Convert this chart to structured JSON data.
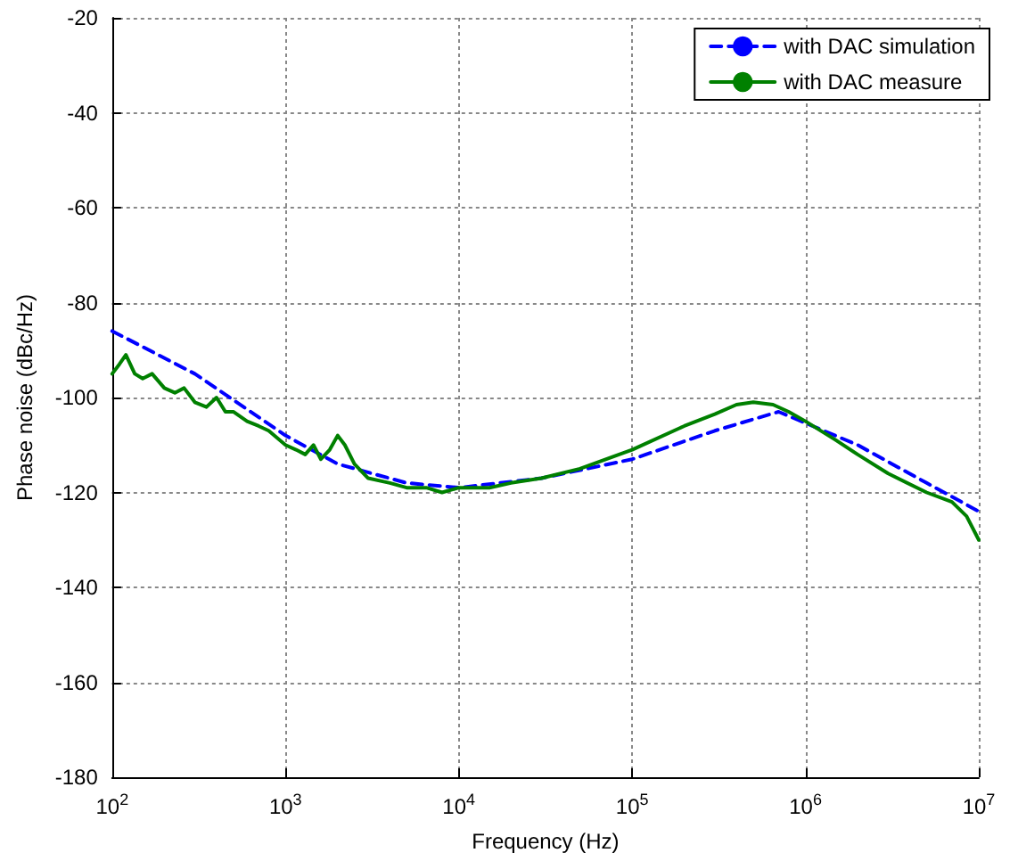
{
  "chart_data": {
    "type": "line",
    "xlabel": "Frequency (Hz)",
    "ylabel": "Phase noise (dBc/Hz)",
    "log": "x",
    "xlim": [
      100,
      10000000
    ],
    "xticks": [
      {
        "value": 100,
        "label": "10$^{2}$"
      },
      {
        "value": 1000,
        "label": "10$^{3}$"
      },
      {
        "value": 10000,
        "label": "10$^{4}$"
      },
      {
        "value": 100000,
        "label": "10$^{5}$"
      },
      {
        "value": 1000000,
        "label": "10$^{6}$"
      },
      {
        "value": 10000000,
        "label": "10$^{7}$"
      }
    ],
    "ylim": [
      -180,
      -20
    ],
    "yticks": [
      -180,
      -160,
      -140,
      -120,
      -100,
      -80,
      -60,
      -40,
      -20
    ],
    "grid": true,
    "legend": "top right",
    "series": [
      {
        "name": "with DAC simulation",
        "color": "#0000ff",
        "line_style": "dashed",
        "x": [
          100,
          300,
          1000,
          2000,
          5000,
          10000,
          30000,
          100000,
          300000,
          700000,
          2000000,
          5000000,
          10000000
        ],
        "values": [
          -86,
          -95,
          -108,
          -114,
          -118,
          -119,
          -117,
          -113,
          -107,
          -103,
          -110,
          -118,
          -124
        ]
      },
      {
        "name": "with DAC measure",
        "color": "#008000",
        "line_style": "solid",
        "x": [
          100,
          110,
          120,
          135,
          150,
          170,
          200,
          230,
          260,
          300,
          350,
          400,
          450,
          500,
          600,
          700,
          800,
          1000,
          1150,
          1300,
          1450,
          1600,
          1800,
          2000,
          2200,
          2500,
          3000,
          4000,
          5000,
          6500,
          8000,
          10000,
          15000,
          20000,
          30000,
          50000,
          100000,
          200000,
          300000,
          400000,
          500000,
          650000,
          800000,
          1000000,
          1500000,
          2000000,
          3000000,
          5000000,
          7000000,
          8500000,
          10000000
        ],
        "values": [
          -95,
          -93,
          -91,
          -95,
          -96,
          -95,
          -98,
          -99,
          -98,
          -101,
          -102,
          -100,
          -103,
          -103,
          -105,
          -106,
          -107,
          -110,
          -111,
          -112,
          -110,
          -113,
          -111,
          -108,
          -110,
          -114,
          -117,
          -118,
          -119,
          -119,
          -120,
          -119,
          -119,
          -118,
          -117,
          -115,
          -111,
          -106,
          -103.5,
          -101.5,
          -101,
          -101.5,
          -103,
          -105,
          -109,
          -112,
          -116,
          -120,
          -122,
          -125,
          -130
        ]
      }
    ]
  }
}
